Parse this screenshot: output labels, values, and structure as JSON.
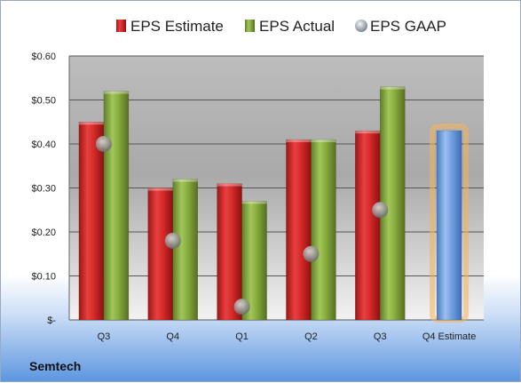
{
  "company": "Semtech",
  "chart_data": {
    "type": "bar",
    "categories": [
      "Q3",
      "Q4",
      "Q1",
      "Q2",
      "Q3",
      "Q4 Estimate"
    ],
    "series": [
      {
        "name": "EPS Estimate",
        "kind": "bar",
        "color": "#d42a2a",
        "values": [
          0.45,
          0.3,
          0.31,
          0.41,
          0.43,
          null
        ]
      },
      {
        "name": "EPS Actual",
        "kind": "bar",
        "color": "#86ab3e",
        "values": [
          0.52,
          0.32,
          0.27,
          0.41,
          0.53,
          null
        ]
      },
      {
        "name": "EPS GAAP",
        "kind": "scatter",
        "color": "#9aa4ae",
        "values": [
          0.4,
          0.18,
          0.03,
          0.15,
          0.25,
          null
        ]
      },
      {
        "name": "",
        "kind": "highlight-bar",
        "color": "#6f9fde",
        "glow": "#f5b25a",
        "values": [
          null,
          null,
          null,
          null,
          null,
          0.43
        ]
      }
    ],
    "y_ticks": [
      0,
      0.1,
      0.2,
      0.3,
      0.4,
      0.5,
      0.6
    ],
    "y_tick_labels": [
      "$-",
      "$0.10",
      "$0.20",
      "$0.30",
      "$0.40",
      "$0.50",
      "$0.60"
    ],
    "ylim": [
      0,
      0.6
    ],
    "grid": true,
    "legend_position": "top",
    "title": "",
    "xlabel": "",
    "ylabel": ""
  }
}
